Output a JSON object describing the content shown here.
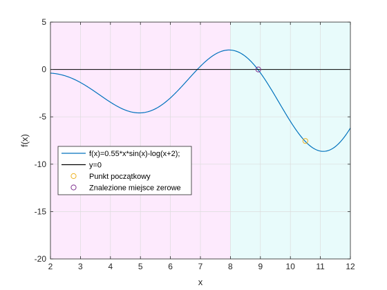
{
  "chart_data": {
    "type": "line",
    "xlabel": "x",
    "ylabel": "f(x)",
    "xlim": [
      2,
      12
    ],
    "ylim": [
      -20,
      5
    ],
    "x_ticks": [
      "2",
      "3",
      "4",
      "5",
      "6",
      "7",
      "8",
      "9",
      "10",
      "11",
      "12"
    ],
    "y_ticks": [
      "5",
      "0",
      "-5",
      "-10",
      "-15",
      "-20"
    ],
    "grid": true,
    "legend_position": "left-middle",
    "shaded_regions": [
      {
        "x_range": [
          2,
          8
        ],
        "color": "#fdeafd"
      },
      {
        "x_range": [
          8,
          12
        ],
        "color": "#e8fbfb"
      }
    ],
    "function_coefficient": 0.55,
    "series": [
      {
        "name": "f(x)=0.55*x*sin(x)-log(x+2);",
        "kind": "line",
        "color": "#0072bd"
      },
      {
        "name": "y=0",
        "kind": "line",
        "color": "#000000"
      },
      {
        "name": "Punkt początkowy",
        "kind": "marker",
        "color": "#edb120",
        "x": 10.5,
        "y": -7.55
      },
      {
        "name": "Znalezione miejsce zerowe",
        "kind": "marker",
        "color": "#7e2f8e",
        "x": 8.93,
        "y": 0
      }
    ]
  }
}
